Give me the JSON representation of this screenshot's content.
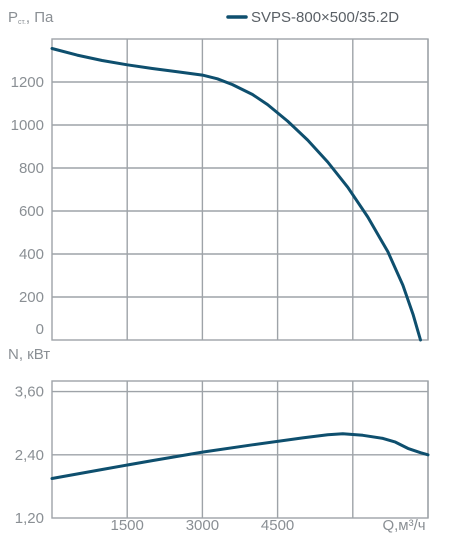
{
  "chart_data": [
    {
      "type": "line",
      "ylabel_main": "P",
      "ylabel_sub": "ст.",
      "ylabel_unit": ", Па",
      "xlim": [
        0,
        7500
      ],
      "ylim": [
        0,
        1400
      ],
      "yticks": [
        0,
        200,
        400,
        600,
        800,
        1000,
        1200
      ],
      "x_gridlines": [
        1500,
        3000,
        4500,
        6000,
        7500
      ],
      "grid": true,
      "legend_position": "top-right",
      "series": [
        {
          "name": "SVPS-800×500/35.2D",
          "color": "#0e4f6e",
          "points": [
            [
              0,
              1356
            ],
            [
              500,
              1325
            ],
            [
              1000,
              1300
            ],
            [
              1500,
              1280
            ],
            [
              2000,
              1263
            ],
            [
              2500,
              1248
            ],
            [
              3000,
              1232
            ],
            [
              3300,
              1215
            ],
            [
              3600,
              1188
            ],
            [
              4000,
              1142
            ],
            [
              4300,
              1095
            ],
            [
              4700,
              1018
            ],
            [
              5100,
              930
            ],
            [
              5500,
              828
            ],
            [
              5900,
              710
            ],
            [
              6300,
              572
            ],
            [
              6700,
              410
            ],
            [
              7000,
              255
            ],
            [
              7200,
              120
            ],
            [
              7300,
              40
            ],
            [
              7350,
              0
            ]
          ]
        }
      ]
    },
    {
      "type": "line",
      "ylabel": "N, кВт",
      "xlabel": "Q,м³/ч",
      "xlim": [
        0,
        7500
      ],
      "ylim": [
        1.2,
        3.8
      ],
      "yticks": [
        "1,20",
        "2,40",
        "3,60"
      ],
      "ytick_values": [
        1.2,
        2.4,
        3.6
      ],
      "xticks": [
        "1500",
        "3000",
        "4500"
      ],
      "xtick_values": [
        1500,
        3000,
        4500
      ],
      "x_gridlines": [
        1500,
        3000,
        4500,
        6000,
        7500
      ],
      "grid": true,
      "series": [
        {
          "color": "#0e4f6e",
          "points": [
            [
              0,
              1.95
            ],
            [
              1000,
              2.12
            ],
            [
              2000,
              2.29
            ],
            [
              3000,
              2.45
            ],
            [
              4000,
              2.59
            ],
            [
              5000,
              2.72
            ],
            [
              5500,
              2.78
            ],
            [
              5800,
              2.8
            ],
            [
              6200,
              2.77
            ],
            [
              6600,
              2.71
            ],
            [
              6850,
              2.64
            ],
            [
              7100,
              2.52
            ],
            [
              7350,
              2.44
            ],
            [
              7500,
              2.4
            ]
          ]
        }
      ]
    }
  ]
}
